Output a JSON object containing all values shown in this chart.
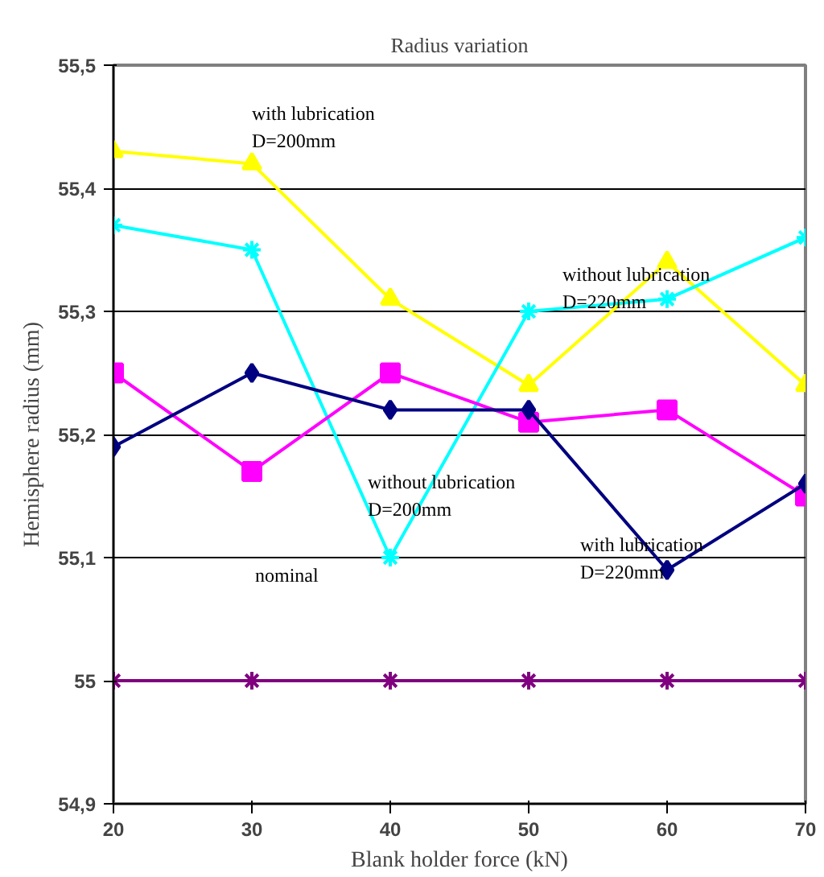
{
  "chart_data": {
    "type": "line",
    "title": "Radius variation",
    "xlabel": "Blank holder force (kN)",
    "ylabel": "Hemisphere radius (mm)",
    "x": [
      20,
      30,
      40,
      50,
      60,
      70
    ],
    "xlim": [
      20,
      70
    ],
    "xticks": [
      20,
      30,
      40,
      50,
      60,
      70
    ],
    "ylim": [
      54.9,
      55.5
    ],
    "yticks": [
      {
        "value": 54.9,
        "label": "54,9"
      },
      {
        "value": 55.0,
        "label": "55"
      },
      {
        "value": 55.1,
        "label": "55,1"
      },
      {
        "value": 55.2,
        "label": "55,2"
      },
      {
        "value": 55.3,
        "label": "55,3"
      },
      {
        "value": 55.4,
        "label": "55,4"
      },
      {
        "value": 55.5,
        "label": "55,5"
      }
    ],
    "grid": "y",
    "series": [
      {
        "color": "#ffff00",
        "marker": "triangle",
        "values": [
          55.43,
          55.42,
          55.31,
          55.24,
          55.34,
          55.24
        ]
      },
      {
        "color": "#00ffff",
        "marker": "cross",
        "values": [
          55.37,
          55.35,
          55.1,
          55.3,
          55.31,
          55.36
        ]
      },
      {
        "color": "#ff00ff",
        "marker": "square",
        "values": [
          55.25,
          55.17,
          55.25,
          55.21,
          55.22,
          55.15
        ]
      },
      {
        "color": "#000080",
        "marker": "diamond",
        "values": [
          55.19,
          55.25,
          55.22,
          55.22,
          55.09,
          55.16
        ]
      },
      {
        "color": "#800080",
        "marker": "cross",
        "values": [
          55.0,
          55.0,
          55.0,
          55.0,
          55.0,
          55.0
        ]
      }
    ],
    "annotations": [
      "with lubrication\nD=200mm",
      "without lubrication\nD=220mm",
      "without lubrication\nD=200mm",
      "nominal",
      "with lubrication\nD=220mm"
    ]
  }
}
